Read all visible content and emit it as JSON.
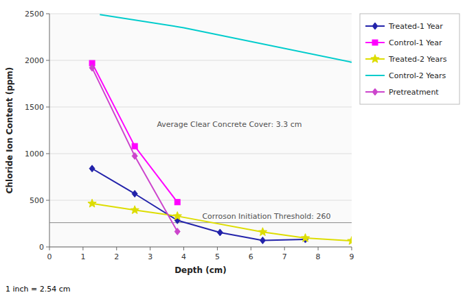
{
  "chart_data": {
    "type": "line",
    "xlabel": "Depth (cm)",
    "ylabel": "Chloride Ion Content (ppm)",
    "xlim": [
      0,
      9
    ],
    "ylim": [
      0,
      2500
    ],
    "xticks": [
      0,
      1,
      2,
      3,
      4,
      5,
      6,
      7,
      8,
      9
    ],
    "yticks": [
      0,
      500,
      1000,
      1500,
      2000,
      2500
    ],
    "grid": true,
    "legend": "right",
    "footnote": "1 inch = 2.54 cm",
    "threshold": 260,
    "annotations": [
      {
        "text": "Average Clear Concrete Cover: 3.3 cm",
        "x": 3.2,
        "y": 1290
      },
      {
        "text": "Corroson Initiation Threshold: 260",
        "x": 4.55,
        "y": 305
      }
    ],
    "series": [
      {
        "name": "Treated-1 Year",
        "color": "#2222AA",
        "marker": "diamond",
        "x": [
          1.27,
          2.54,
          3.81,
          5.08,
          6.35,
          7.62
        ],
        "values": [
          840,
          570,
          285,
          155,
          70,
          80
        ]
      },
      {
        "name": "Control-1 Year",
        "color": "#FF00FF",
        "marker": "square",
        "x": [
          1.27,
          2.54,
          3.81
        ],
        "values": [
          1970,
          1080,
          480
        ]
      },
      {
        "name": "Treated-2 Years",
        "color": "#DDDD00",
        "marker": "star",
        "x": [
          1.27,
          2.54,
          3.81,
          6.35,
          7.62,
          9.0
        ],
        "values": [
          465,
          395,
          330,
          160,
          95,
          65
        ]
      },
      {
        "name": "Control-2 Years",
        "color": "#00CCCC",
        "x": [
          1.5,
          4.0,
          9.0
        ],
        "values": [
          2490,
          2350,
          1980
        ]
      },
      {
        "name": "Pretreatment",
        "color": "#CC44CC",
        "marker": "diamond",
        "x": [
          1.27,
          2.54,
          3.81
        ],
        "values": [
          1920,
          975,
          165
        ]
      }
    ]
  }
}
